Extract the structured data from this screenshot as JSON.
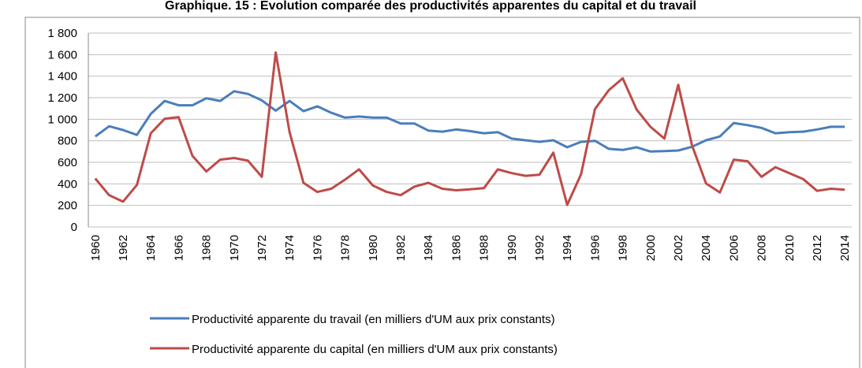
{
  "chart_data": {
    "type": "line",
    "title": "Graphique. 15 : Evolution comparée des productivités apparentes du capital et du travail",
    "categories": [
      "1960",
      null,
      "1962",
      null,
      "1964",
      null,
      "1966",
      null,
      "1968",
      null,
      "1970",
      null,
      "1972",
      null,
      "1974",
      null,
      "1976",
      null,
      "1978",
      null,
      "1980",
      null,
      "1982",
      null,
      "1984",
      null,
      "1986",
      null,
      "1988",
      null,
      "1990",
      null,
      "1992",
      null,
      "1994",
      null,
      "1996",
      null,
      "1998",
      null,
      "2000",
      null,
      "2002",
      null,
      "2004",
      null,
      "2006",
      null,
      "2008",
      null,
      "2010",
      null,
      "2012",
      null,
      "2014"
    ],
    "series": [
      {
        "name": "Productivité apparente du travail (en milliers d'UM aux prix constants)",
        "color": "#4a7ebb",
        "values": [
          840,
          935,
          900,
          855,
          1050,
          1170,
          1130,
          1130,
          1195,
          1170,
          1260,
          1235,
          1175,
          1080,
          1170,
          1075,
          1120,
          1060,
          1015,
          1025,
          1015,
          1015,
          960,
          960,
          895,
          885,
          905,
          890,
          870,
          880,
          820,
          805,
          790,
          805,
          740,
          790,
          800,
          725,
          715,
          740,
          700,
          705,
          710,
          745,
          805,
          840,
          965,
          945,
          920,
          870,
          880,
          885,
          905,
          930,
          930
        ]
      },
      {
        "name": "Productivité apparente du capital (en milliers d'UM aux prix constants)",
        "color": "#be4b48",
        "values": [
          450,
          295,
          235,
          390,
          870,
          1005,
          1020,
          660,
          515,
          625,
          640,
          615,
          465,
          1620,
          880,
          410,
          325,
          355,
          440,
          535,
          385,
          325,
          295,
          375,
          410,
          355,
          340,
          350,
          360,
          535,
          500,
          475,
          485,
          690,
          205,
          490,
          1095,
          1270,
          1380,
          1090,
          930,
          820,
          1320,
          755,
          405,
          320,
          625,
          610,
          465,
          555,
          500,
          445,
          335,
          355,
          345
        ]
      }
    ],
    "ylim": [
      0,
      1800
    ],
    "yticks": [
      0,
      200,
      400,
      600,
      800,
      {
        "value": 1000,
        "label": "1 000"
      },
      {
        "value": 1200,
        "label": "1 200"
      },
      {
        "value": 1400,
        "label": "1 400"
      },
      {
        "value": 1600,
        "label": "1 600"
      },
      {
        "value": 1800,
        "label": "1 800"
      }
    ],
    "grid": true
  }
}
